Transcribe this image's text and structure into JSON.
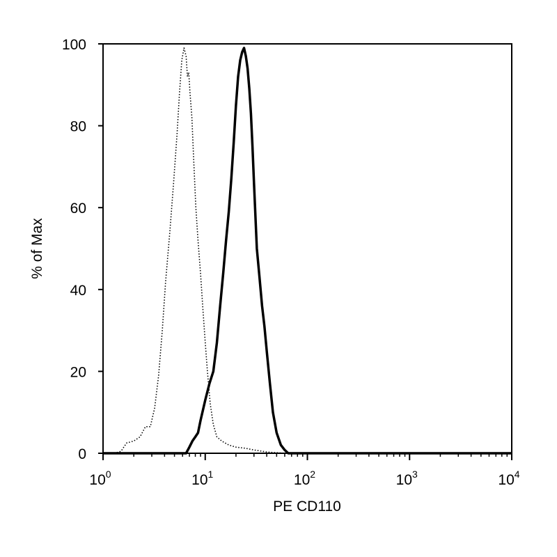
{
  "chart_data": {
    "type": "line",
    "title": "",
    "xlabel": "PE CD110",
    "ylabel": "% of Max",
    "xscale": "log",
    "xlim": [
      1,
      10000
    ],
    "ylim": [
      0,
      100
    ],
    "grid": false,
    "legend": "none",
    "x_ticks": [
      {
        "base": "10",
        "exp": "0",
        "value": 1
      },
      {
        "base": "10",
        "exp": "1",
        "value": 10
      },
      {
        "base": "10",
        "exp": "2",
        "value": 100
      },
      {
        "base": "10",
        "exp": "3",
        "value": 1000
      },
      {
        "base": "10",
        "exp": "4",
        "value": 10000
      }
    ],
    "y_ticks": [
      "0",
      "20",
      "40",
      "60",
      "80",
      "100"
    ],
    "series": [
      {
        "style": "dotted",
        "color": "#000000",
        "x": [
          1.0,
          1.3,
          1.5,
          1.7,
          2.0,
          2.3,
          2.6,
          2.9,
          3.2,
          3.5,
          3.8,
          4.1,
          4.5,
          4.9,
          5.3,
          5.6,
          5.9,
          6.2,
          6.5,
          6.7,
          6.9,
          7.1,
          7.4,
          7.7,
          8.1,
          8.5,
          9.0,
          9.5,
          10.0,
          10.5,
          11.2,
          12.0,
          13.0,
          14.5,
          17.0,
          20.0,
          25.0,
          30.0,
          40.0,
          60.0,
          10000.0
        ],
        "y": [
          0,
          0,
          0.5,
          2.5,
          3,
          4,
          6.5,
          6.5,
          11,
          19,
          30,
          42,
          54,
          66,
          78,
          88,
          96,
          99,
          97,
          92,
          93,
          88,
          82,
          72,
          60,
          52,
          44,
          35,
          27,
          20,
          12,
          7,
          4,
          3,
          2,
          1.5,
          1.2,
          0.8,
          0.3,
          0,
          0
        ]
      },
      {
        "style": "solid-thick",
        "color": "#000000",
        "x": [
          1.0,
          6.5,
          7.0,
          7.5,
          8.0,
          8.5,
          9.0,
          10.0,
          11.0,
          12.0,
          13.0,
          14.0,
          15.0,
          16.0,
          17.0,
          18.0,
          19.0,
          20.0,
          21.0,
          22.0,
          23.0,
          24.0,
          25.0,
          26.0,
          27.0,
          28.0,
          29.0,
          30.0,
          32.0,
          34.0,
          36.0,
          38.0,
          40.0,
          43.0,
          46.0,
          50.0,
          55.0,
          60.0,
          65.0,
          10000.0
        ],
        "y": [
          0,
          0,
          1.5,
          3,
          4,
          5,
          8,
          13,
          17,
          20,
          27,
          36,
          44,
          52,
          59,
          67,
          76,
          85,
          92,
          96,
          98,
          99,
          97,
          94,
          89,
          83,
          75,
          66,
          50,
          43,
          36,
          31,
          25,
          17,
          10,
          5,
          2,
          0.8,
          0,
          0
        ]
      }
    ]
  }
}
